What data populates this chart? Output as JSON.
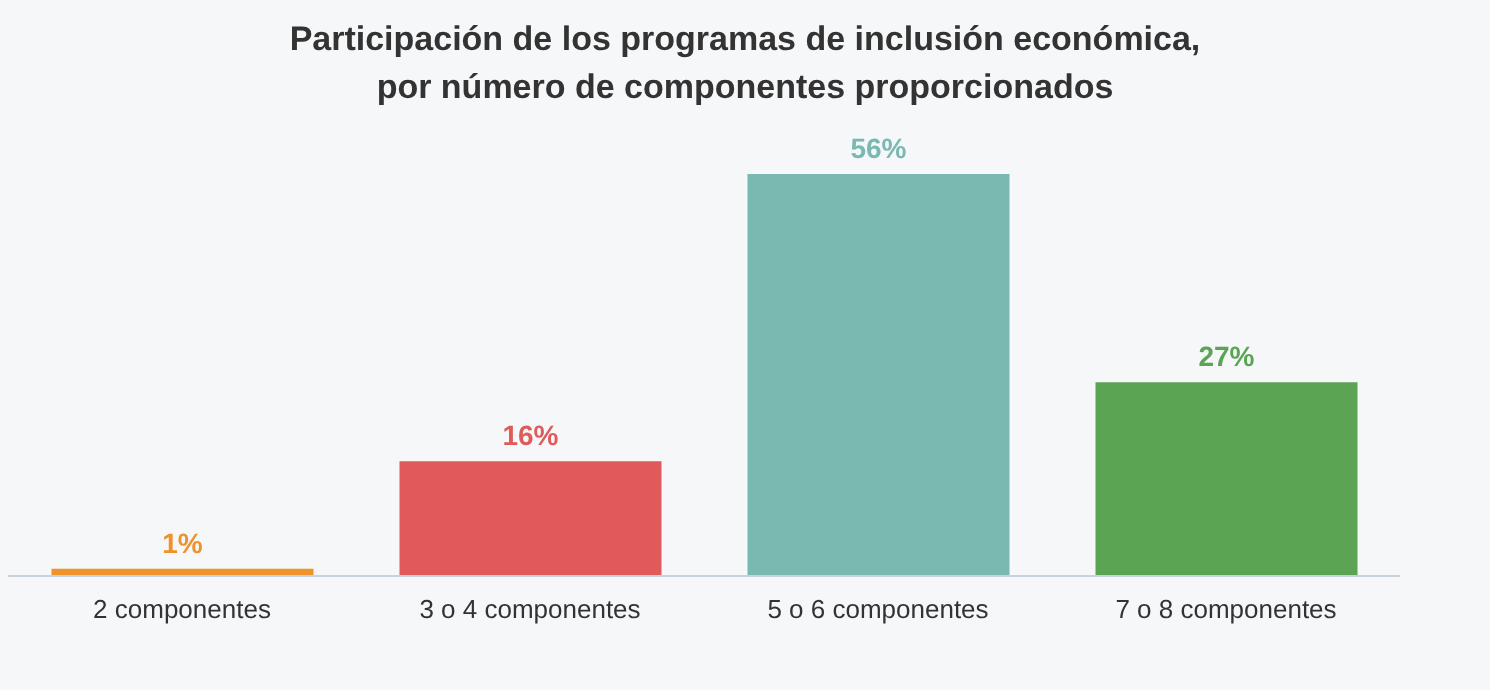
{
  "chart_data": {
    "type": "bar",
    "title": "Participación de los programas de inclusión económica, por número de componentes proporcionados",
    "categories": [
      "2 componentes",
      "3 o 4 componentes",
      "5 o 6 componentes",
      "7 o 8 componentes"
    ],
    "values": [
      1,
      16,
      56,
      27
    ],
    "colors": [
      "#f0922b",
      "#e05a5a",
      "#7ab8b2",
      "#5ba453"
    ],
    "value_labels": [
      "1%",
      "16%",
      "56%",
      "27%"
    ]
  }
}
